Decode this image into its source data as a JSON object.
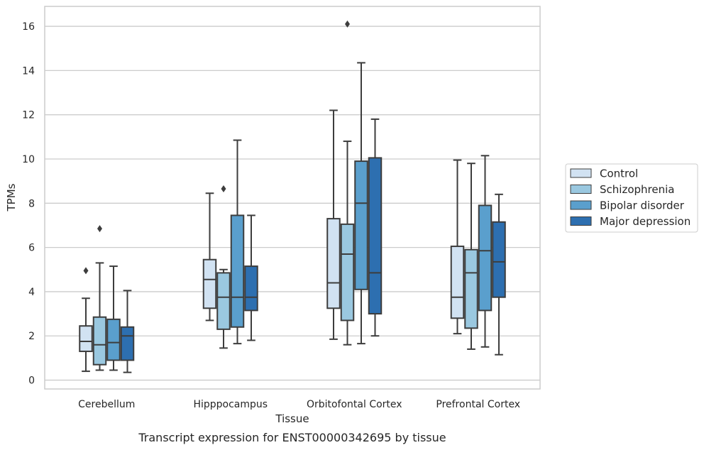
{
  "chart_data": {
    "type": "box",
    "title": "",
    "caption": "Transcript expression for ENST00000342695 by tissue",
    "xlabel": "Tissue",
    "ylabel": "TPMs",
    "ylim": [
      -0.4,
      16.9
    ],
    "yticks": [
      0,
      2,
      4,
      6,
      8,
      10,
      12,
      14,
      16
    ],
    "grid": "horizontal",
    "legend_position": "right",
    "categories": [
      "Cerebellum",
      "Hipppocampus",
      "Orbitofontal Cortex",
      "Prefrontal Cortex"
    ],
    "series": [
      {
        "name": "Control",
        "color": "#d1e2f2",
        "boxes": [
          {
            "whisker_low": 0.4,
            "q1": 1.3,
            "median": 1.75,
            "q3": 2.45,
            "whisker_high": 3.7,
            "outliers": [
              4.95
            ]
          },
          {
            "whisker_low": 2.7,
            "q1": 3.25,
            "median": 4.55,
            "q3": 5.45,
            "whisker_high": 8.45,
            "outliers": []
          },
          {
            "whisker_low": 1.85,
            "q1": 3.25,
            "median": 4.4,
            "q3": 7.3,
            "whisker_high": 12.2,
            "outliers": []
          },
          {
            "whisker_low": 2.1,
            "q1": 2.8,
            "median": 3.75,
            "q3": 6.05,
            "whisker_high": 9.95,
            "outliers": []
          }
        ]
      },
      {
        "name": "Schizophrenia",
        "color": "#9ac8e0",
        "boxes": [
          {
            "whisker_low": 0.45,
            "q1": 0.7,
            "median": 1.6,
            "q3": 2.85,
            "whisker_high": 5.3,
            "outliers": [
              6.85
            ]
          },
          {
            "whisker_low": 1.45,
            "q1": 2.3,
            "median": 3.75,
            "q3": 4.85,
            "whisker_high": 5.0,
            "outliers": [
              8.65
            ]
          },
          {
            "whisker_low": 1.6,
            "q1": 2.7,
            "median": 5.7,
            "q3": 7.05,
            "whisker_high": 10.8,
            "outliers": [
              16.1
            ]
          },
          {
            "whisker_low": 1.4,
            "q1": 2.35,
            "median": 4.85,
            "q3": 5.9,
            "whisker_high": 9.8,
            "outliers": []
          }
        ]
      },
      {
        "name": "Bipolar disorder",
        "color": "#5a9fcd",
        "boxes": [
          {
            "whisker_low": 0.45,
            "q1": 0.9,
            "median": 1.7,
            "q3": 2.75,
            "whisker_high": 5.15,
            "outliers": []
          },
          {
            "whisker_low": 1.65,
            "q1": 2.4,
            "median": 3.75,
            "q3": 7.45,
            "whisker_high": 10.85,
            "outliers": []
          },
          {
            "whisker_low": 1.65,
            "q1": 4.1,
            "median": 8.0,
            "q3": 9.9,
            "whisker_high": 14.35,
            "outliers": []
          },
          {
            "whisker_low": 1.5,
            "q1": 3.15,
            "median": 5.85,
            "q3": 7.9,
            "whisker_high": 10.15,
            "outliers": []
          }
        ]
      },
      {
        "name": "Major depression",
        "color": "#2d6fb0",
        "boxes": [
          {
            "whisker_low": 0.35,
            "q1": 0.9,
            "median": 2.0,
            "q3": 2.4,
            "whisker_high": 4.05,
            "outliers": []
          },
          {
            "whisker_low": 1.8,
            "q1": 3.15,
            "median": 3.75,
            "q3": 5.15,
            "whisker_high": 7.45,
            "outliers": []
          },
          {
            "whisker_low": 2.0,
            "q1": 3.0,
            "median": 4.85,
            "q3": 10.05,
            "whisker_high": 11.8,
            "outliers": []
          },
          {
            "whisker_low": 1.15,
            "q1": 3.75,
            "median": 5.35,
            "q3": 7.15,
            "whisker_high": 8.4,
            "outliers": []
          }
        ]
      }
    ]
  }
}
